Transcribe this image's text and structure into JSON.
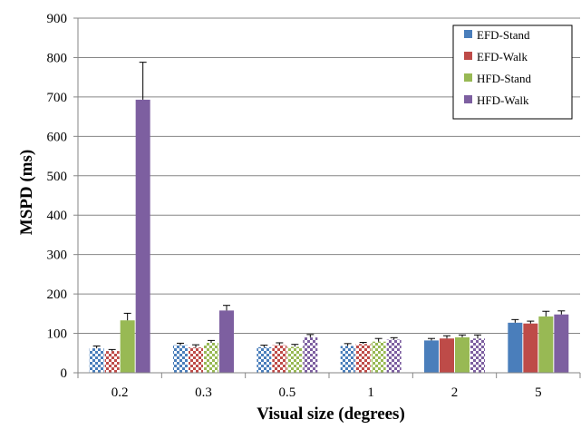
{
  "chart_data": {
    "type": "bar",
    "title": "",
    "xlabel": "Visual size (degrees)",
    "ylabel": "MSPD (ms)",
    "ylim": [
      0,
      900
    ],
    "yticks": [
      0,
      100,
      200,
      300,
      400,
      500,
      600,
      700,
      800,
      900
    ],
    "grid": "horizontal",
    "legend_position": "top-right",
    "categories": [
      "0.2",
      "0.3",
      "0.5",
      "1",
      "2",
      "5"
    ],
    "series": [
      {
        "name": "EFD-Stand",
        "color": "#4a7ebb",
        "values": [
          62,
          70,
          65,
          68,
          82,
          127
        ],
        "errors": [
          6,
          5,
          5,
          6,
          5,
          8
        ],
        "pattern": [
          "checker",
          "checker",
          "checker",
          "checker",
          "solid",
          "solid"
        ]
      },
      {
        "name": "EFD-Walk",
        "color": "#be4b48",
        "values": [
          55,
          64,
          70,
          73,
          87,
          125
        ],
        "errors": [
          4,
          7,
          6,
          4,
          7,
          6
        ],
        "pattern": [
          "checker",
          "checker",
          "checker",
          "checker",
          "solid",
          "solid"
        ]
      },
      {
        "name": "HFD-Stand",
        "color": "#98b954",
        "values": [
          133,
          76,
          66,
          79,
          90,
          143
        ],
        "errors": [
          18,
          6,
          6,
          8,
          6,
          13
        ],
        "pattern": [
          "solid",
          "checker",
          "checker",
          "checker",
          "solid",
          "solid"
        ]
      },
      {
        "name": "HFD-Walk",
        "color": "#7d5fa0",
        "values": [
          693,
          158,
          90,
          84,
          87,
          148
        ],
        "errors": [
          95,
          13,
          7,
          5,
          9,
          9
        ],
        "pattern": [
          "solid",
          "solid",
          "checker",
          "checker",
          "checker",
          "solid"
        ]
      }
    ]
  }
}
